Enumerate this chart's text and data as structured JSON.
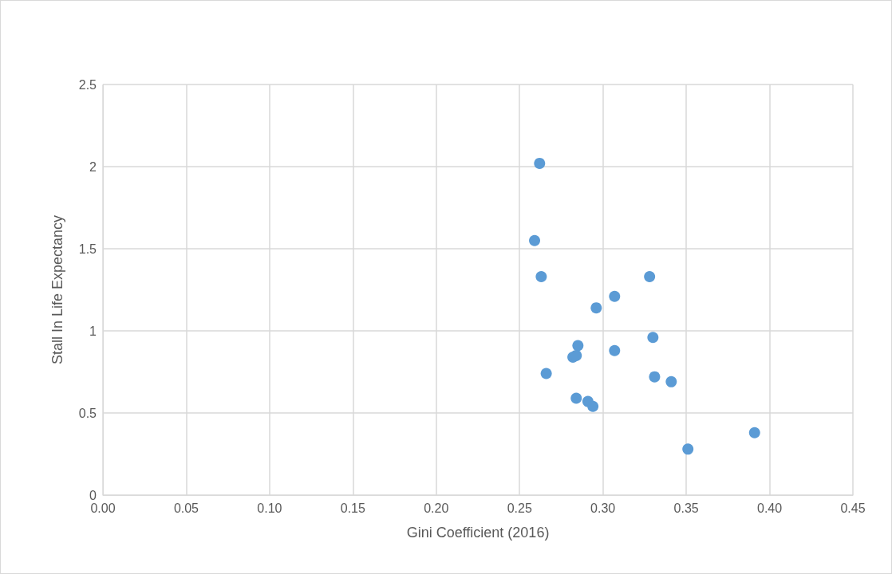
{
  "chart_data": {
    "type": "scatter",
    "xlabel": "Gini Coefficient (2016)",
    "ylabel": "Stall In Life Expectancy",
    "x": [
      0.262,
      0.259,
      0.263,
      0.328,
      0.307,
      0.296,
      0.285,
      0.282,
      0.284,
      0.307,
      0.33,
      0.266,
      0.331,
      0.341,
      0.284,
      0.291,
      0.294,
      0.351,
      0.391
    ],
    "values": [
      2.02,
      1.55,
      1.33,
      1.33,
      1.21,
      1.14,
      0.91,
      0.84,
      0.85,
      0.88,
      0.96,
      0.74,
      0.72,
      0.69,
      0.59,
      0.57,
      0.54,
      0.28,
      0.38
    ],
    "color": "#5b9bd5",
    "marker": "circle",
    "xlim": [
      0,
      0.45
    ],
    "xticks": [
      {
        "value": 0,
        "label": "0.00"
      },
      {
        "value": 0.05,
        "label": "0.05"
      },
      {
        "value": 0.1,
        "label": "0.10"
      },
      {
        "value": 0.15,
        "label": "0.15"
      },
      {
        "value": 0.2,
        "label": "0.20"
      },
      {
        "value": 0.25,
        "label": "0.25"
      },
      {
        "value": 0.3,
        "label": "0.30"
      },
      {
        "value": 0.35,
        "label": "0.35"
      },
      {
        "value": 0.4,
        "label": "0.40"
      },
      {
        "value": 0.45,
        "label": "0.45"
      }
    ],
    "ylim": [
      0,
      2.5
    ],
    "yticks": [
      0,
      0.5,
      1,
      1.5,
      2,
      2.5
    ],
    "grid": true
  }
}
